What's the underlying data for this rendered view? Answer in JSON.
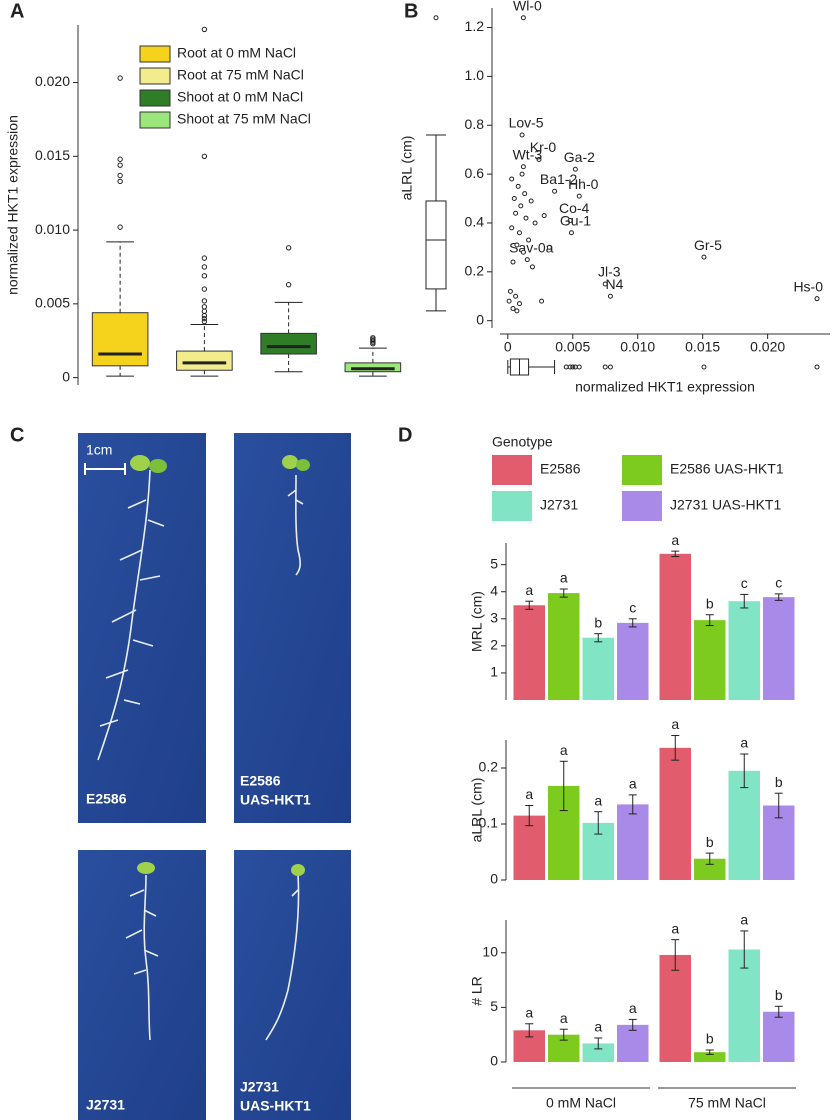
{
  "chart_data": [
    {
      "type": "box",
      "panel": "A",
      "ylabel": "normalized HKT1 expression",
      "ylim": [
        -0.0005,
        0.0239
      ],
      "yticks": [
        0,
        0.005,
        {
          "value": 0.01,
          "label": "0.010"
        },
        0.015,
        {
          "value": 0.02,
          "label": "0.020"
        }
      ],
      "series": [
        {
          "name": "Root at 0 mM NaCl",
          "color": "#f5d31c",
          "whislo": 0.0001,
          "q1": 0.0008,
          "med": 0.0016,
          "q3": 0.0044,
          "whishi": 0.0092,
          "fliers": [
            0.0203,
            0.0148,
            0.0144,
            0.0137,
            0.0133,
            0.0102
          ]
        },
        {
          "name": "Root at 75 mM NaCl",
          "color": "#f3ec8c",
          "whislo": 0.0001,
          "q1": 0.0005,
          "med": 0.001,
          "q3": 0.0018,
          "whishi": 0.0036,
          "fliers": [
            0.0236,
            0.015,
            0.0081,
            0.0075,
            0.0069,
            0.006,
            0.0052,
            0.0048,
            0.0045,
            0.0042,
            0.004,
            0.0038
          ]
        },
        {
          "name": "Shoot at 0 mM NaCl",
          "color": "#2f7d27",
          "whislo": 0.0004,
          "q1": 0.0016,
          "med": 0.0021,
          "q3": 0.003,
          "whishi": 0.0051,
          "fliers": [
            0.0088,
            0.0063
          ]
        },
        {
          "name": "Shoot at 75 mM NaCl",
          "color": "#9ce77b",
          "whislo": 0.0001,
          "q1": 0.0004,
          "med": 0.0006,
          "q3": 0.001,
          "whishi": 0.002,
          "fliers": [
            0.0027,
            0.0026,
            0.0025,
            0.0024,
            0.0023
          ]
        }
      ]
    },
    {
      "type": "scatter",
      "panel": "B",
      "xlabel": "normalized HKT1 expression",
      "ylabel": "aLRL (cm)",
      "xlim": [
        -0.0006,
        0.0248
      ],
      "ylim": [
        -0.03,
        1.28
      ],
      "xticks": [
        0,
        0.005,
        {
          "value": 0.01,
          "label": "0.010"
        },
        0.015,
        {
          "value": 0.02,
          "label": "0.020"
        }
      ],
      "yticks": [
        0,
        0.2,
        0.4,
        0.6,
        0.8,
        {
          "value": 1,
          "label": "1.0"
        },
        1.2
      ],
      "x": [
        0.0012,
        0.0011,
        0.0024,
        0.0012,
        0.0052,
        0.0036,
        0.0055,
        0.0048,
        0.0049,
        0.0015,
        0.0075,
        0.0079,
        0.0151,
        0.0238,
        0.0003,
        0.0008,
        0.0013,
        0.0005,
        0.001,
        0.0018,
        0.0006,
        0.0014,
        0.0021,
        0.0003,
        0.0009,
        0.0016,
        0.0007,
        0.0012,
        0.0004,
        0.0019,
        0.0002,
        0.0006,
        0.0001,
        0.0009,
        0.0004,
        0.0007,
        0.0026,
        0.0032,
        0.0028,
        0.0011
      ],
      "y": [
        1.24,
        0.76,
        0.66,
        0.63,
        0.62,
        0.53,
        0.51,
        0.41,
        0.36,
        0.25,
        0.15,
        0.1,
        0.26,
        0.09,
        0.58,
        0.55,
        0.52,
        0.5,
        0.47,
        0.49,
        0.44,
        0.42,
        0.4,
        0.38,
        0.36,
        0.33,
        0.31,
        0.28,
        0.24,
        0.22,
        0.12,
        0.1,
        0.08,
        0.07,
        0.05,
        0.04,
        0.08,
        0.3,
        0.43,
        0.6
      ],
      "point_labels": [
        "Wl-0",
        "Lov-5",
        "Kr-0",
        "Wt-3",
        "Ga-2",
        "Ba1-2",
        "Hh-0",
        "Co-4",
        "Gu-1",
        "Sav-0a",
        "Jl-3",
        "N4",
        "Gr-5",
        "Hs-0",
        null,
        null,
        null,
        null,
        null,
        null,
        null,
        null,
        null,
        null,
        null,
        null,
        null,
        null,
        null,
        null,
        null,
        null,
        null,
        null,
        null,
        null,
        null,
        null,
        null,
        null
      ],
      "y_box": {
        "whislo": 0.04,
        "q1": 0.13,
        "med": 0.33,
        "q3": 0.49,
        "whishi": 0.76,
        "fliers": [
          1.24
        ]
      },
      "x_box": {
        "whislo": 0,
        "q1": 0.0002,
        "med": 0.0009,
        "q3": 0.0016,
        "whishi": 0.0036,
        "fliers": [
          0.0045,
          0.0048,
          0.005,
          0.0052,
          0.0055,
          0.0075,
          0.0079,
          0.0151,
          0.0238
        ]
      }
    },
    {
      "type": "grouped_bar_panels",
      "panel": "D",
      "legend_title": "Genotype",
      "categories": [
        "0 mM NaCl",
        "75 mM NaCl"
      ],
      "series": [
        {
          "name": "E2586",
          "color": "#e15c6c"
        },
        {
          "name": "E2586 UAS-HKT1",
          "color": "#7ccb1e"
        },
        {
          "name": "J2731",
          "color": "#80e4c5"
        },
        {
          "name": "J2731 UAS-HKT1",
          "color": "#a98ae9"
        }
      ],
      "subplots": [
        {
          "ylabel": "MRL (cm)",
          "ylim": [
            0,
            5.8
          ],
          "yticks": [
            1,
            2,
            3,
            4,
            5
          ],
          "values": [
            [
              3.5,
              5.4
            ],
            [
              3.95,
              2.95
            ],
            [
              2.3,
              3.65
            ],
            [
              2.85,
              3.8
            ]
          ],
          "errors": [
            [
              0.15,
              0.1
            ],
            [
              0.15,
              0.2
            ],
            [
              0.15,
              0.25
            ],
            [
              0.15,
              0.12
            ]
          ],
          "letters": [
            [
              "a",
              "a"
            ],
            [
              "a",
              "b"
            ],
            [
              "b",
              "c"
            ],
            [
              "c",
              "c"
            ]
          ]
        },
        {
          "ylabel": "aLRL (cm)",
          "ylim": [
            0,
            0.25
          ],
          "yticks": [
            0,
            0.1,
            0.2
          ],
          "values": [
            [
              0.115,
              0.236
            ],
            [
              0.168,
              0.038
            ],
            [
              0.102,
              0.195
            ],
            [
              0.135,
              0.133
            ]
          ],
          "errors": [
            [
              0.018,
              0.022
            ],
            [
              0.044,
              0.01
            ],
            [
              0.02,
              0.03
            ],
            [
              0.017,
              0.022
            ]
          ],
          "letters": [
            [
              "a",
              "a"
            ],
            [
              "a",
              "b"
            ],
            [
              "a",
              "a"
            ],
            [
              "a",
              "b"
            ]
          ]
        },
        {
          "ylabel": "# LR",
          "ylim": [
            0,
            13
          ],
          "yticks": [
            0,
            5,
            10
          ],
          "values": [
            [
              2.9,
              9.8
            ],
            [
              2.5,
              0.9
            ],
            [
              1.7,
              10.3
            ],
            [
              3.4,
              4.6
            ]
          ],
          "errors": [
            [
              0.6,
              1.4
            ],
            [
              0.5,
              0.2
            ],
            [
              0.5,
              1.7
            ],
            [
              0.5,
              0.5
            ]
          ],
          "letters": [
            [
              "a",
              "a"
            ],
            [
              "a",
              "b"
            ],
            [
              "a",
              "a"
            ],
            [
              "a",
              "b"
            ]
          ]
        }
      ]
    }
  ],
  "panel_c": {
    "panel": "C",
    "scale_bar": "1cm",
    "images": [
      [
        "E2586"
      ],
      [
        "E2586",
        "UAS-HKT1"
      ],
      [
        "J2731"
      ],
      [
        "J2731",
        "UAS-HKT1"
      ]
    ]
  }
}
